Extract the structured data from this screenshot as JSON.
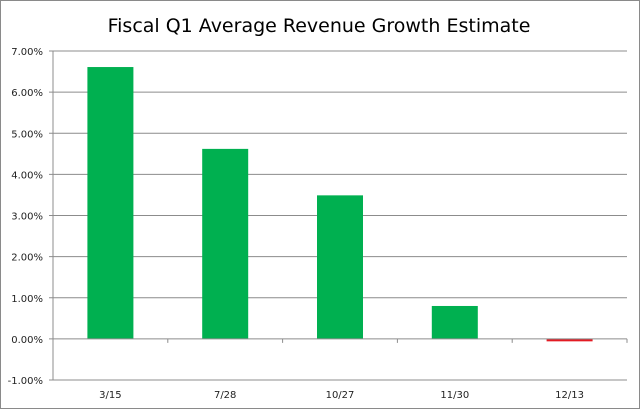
{
  "chart_data": {
    "type": "bar",
    "title": "Fiscal Q1 Average Revenue Growth Estimate",
    "xlabel": "",
    "ylabel": "",
    "categories": [
      "3/15",
      "7/28",
      "10/27",
      "11/30",
      "12/13"
    ],
    "values": [
      6.61,
      4.62,
      3.49,
      0.8,
      -0.06
    ],
    "value_unit": "percent",
    "ylim": [
      -1,
      7
    ],
    "yticks": [
      -1,
      0,
      1,
      2,
      3,
      4,
      5,
      6,
      7
    ],
    "ytick_labels": [
      "-1.00%",
      "0.00%",
      "1.00%",
      "2.00%",
      "3.00%",
      "4.00%",
      "5.00%",
      "6.00%",
      "7.00%"
    ],
    "grid": true,
    "legend": "none",
    "colors": {
      "positive": "#00b050",
      "negative": "#e31b23",
      "grid": "#8c8c8c"
    }
  }
}
